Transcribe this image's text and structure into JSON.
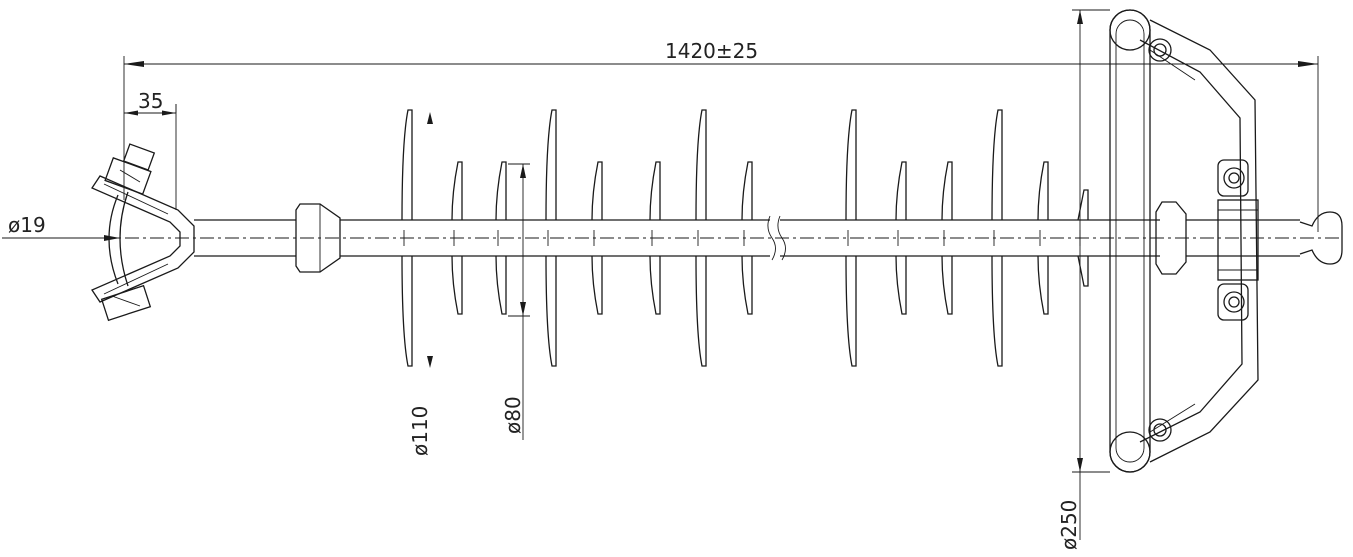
{
  "dimensions": {
    "overall_length": "1420±25",
    "end_width": "35",
    "pin_diameter": "ø19",
    "large_shed_diameter": "ø110",
    "core_diameter": "ø80",
    "grading_ring_diameter": "ø250"
  },
  "colors": {
    "line": "#1a1a1a",
    "background": "#ffffff"
  }
}
